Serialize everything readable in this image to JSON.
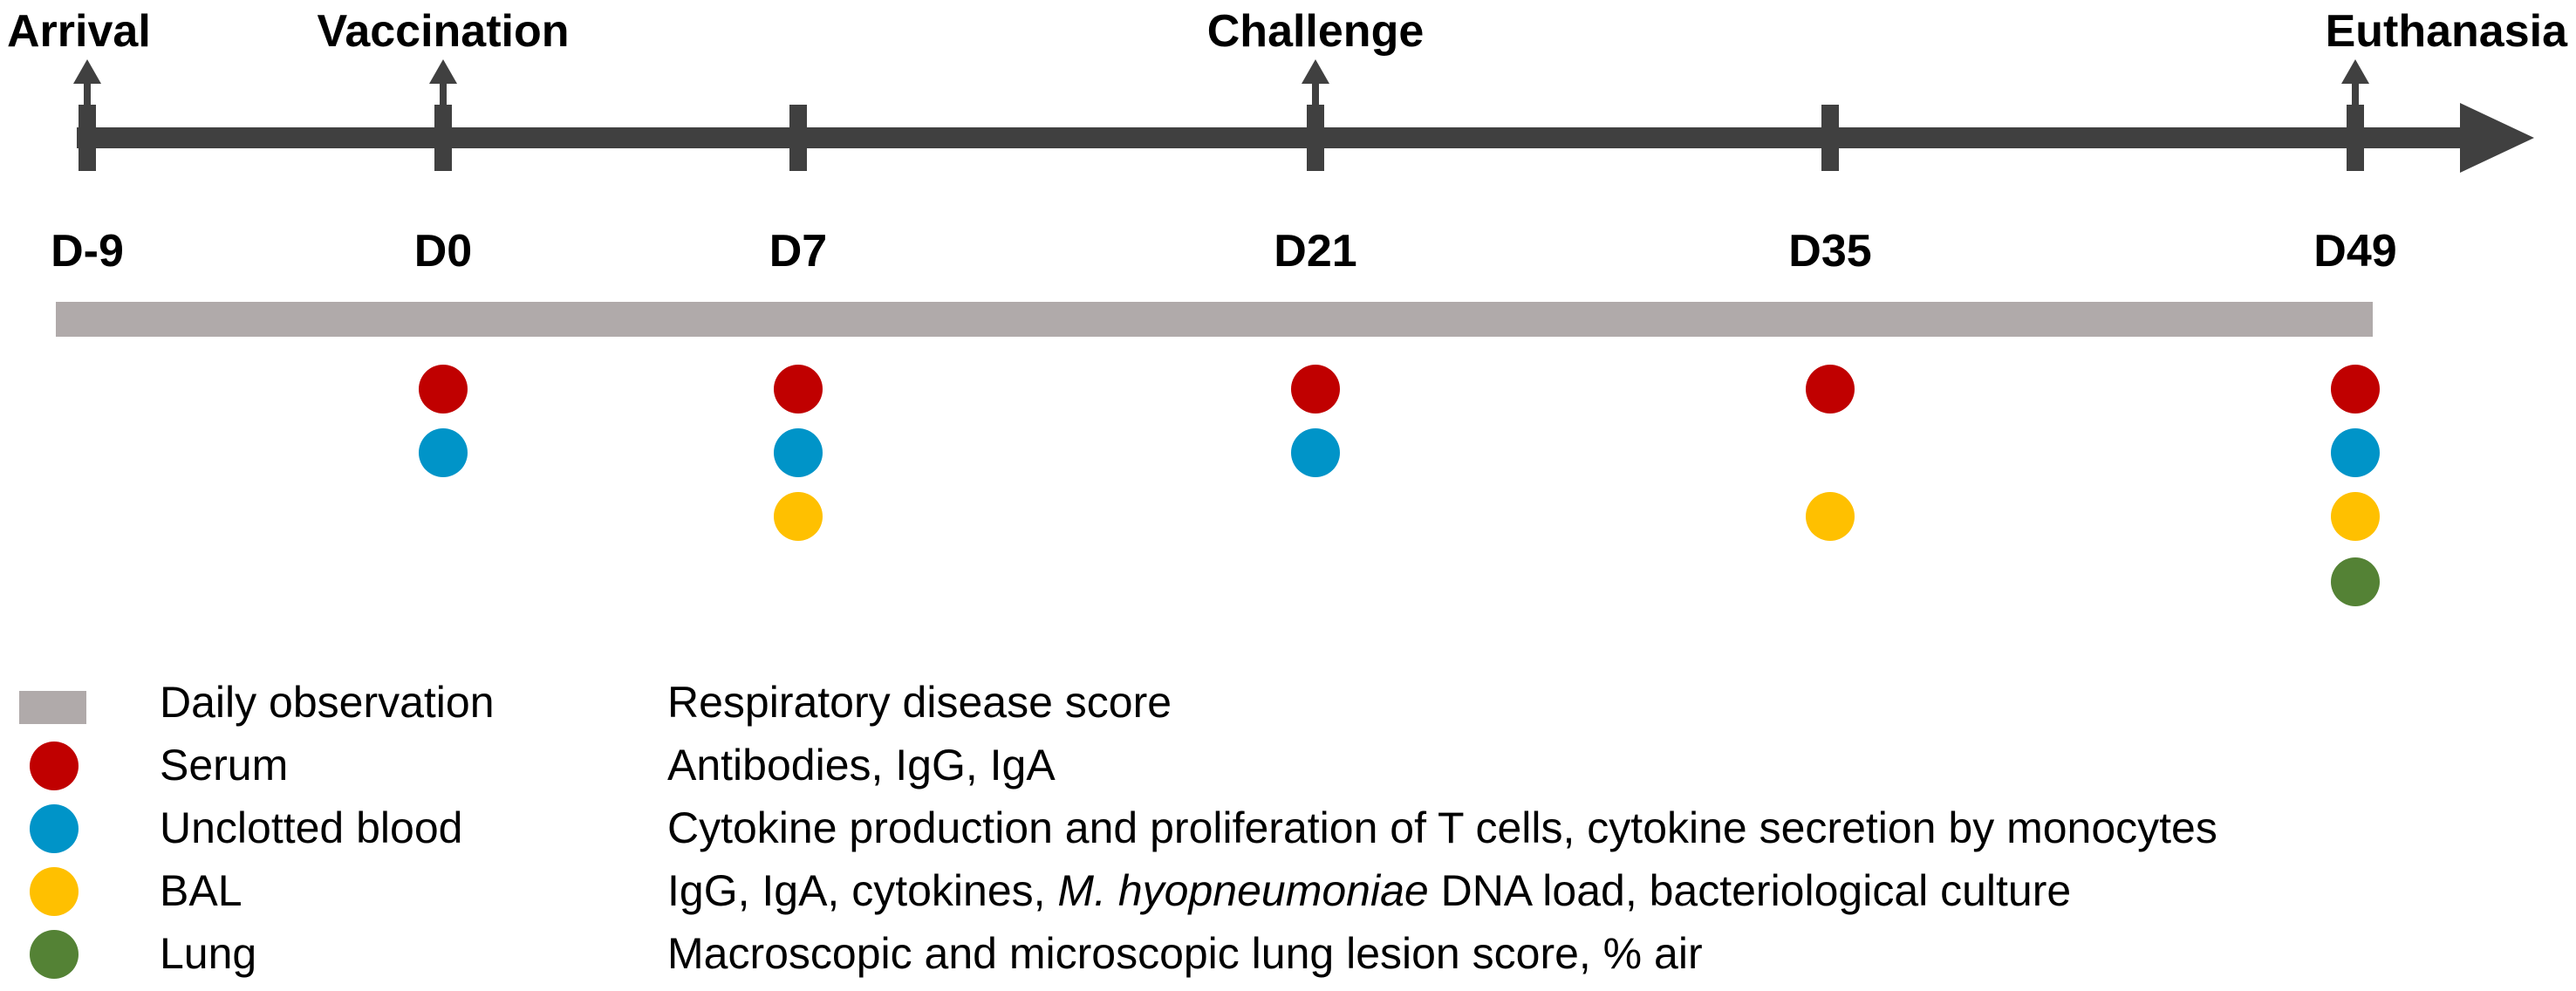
{
  "colors": {
    "axis": "#404040",
    "observation_bar": "#b0aaaa",
    "serum": "#c00000",
    "unclotted_blood": "#0094c8",
    "bal": "#ffc000",
    "lung": "#548235"
  },
  "days": [
    {
      "label": "D-9",
      "day": -9,
      "event": "Arrival",
      "samples": []
    },
    {
      "label": "D0",
      "day": 0,
      "event": "Vaccination",
      "samples": [
        "serum",
        "unclotted_blood"
      ]
    },
    {
      "label": "D7",
      "day": 7,
      "event": "",
      "samples": [
        "serum",
        "unclotted_blood",
        "bal"
      ]
    },
    {
      "label": "D21",
      "day": 21,
      "event": "Challenge",
      "samples": [
        "serum",
        "unclotted_blood"
      ]
    },
    {
      "label": "D35",
      "day": 35,
      "event": "",
      "samples": [
        "serum",
        "bal"
      ]
    },
    {
      "label": "D49",
      "day": 49,
      "event": "Euthanasia",
      "samples": [
        "serum",
        "unclotted_blood",
        "bal",
        "lung"
      ]
    }
  ],
  "legend": [
    {
      "key": "observation",
      "marker": "bar",
      "sample": "Daily observation",
      "measure": "Respiratory disease score"
    },
    {
      "key": "serum",
      "marker": "dot",
      "sample": "Serum",
      "measure": "Antibodies, IgG, IgA"
    },
    {
      "key": "unclotted_blood",
      "marker": "dot",
      "sample": "Unclotted blood",
      "measure": "Cytokine production and proliferation of T cells, cytokine secretion by monocytes"
    },
    {
      "key": "bal",
      "marker": "dot",
      "sample": "BAL",
      "measure_parts": [
        "IgG, IgA, cytokines, ",
        "M. hyopneumoniae",
        " DNA load, bacteriological culture"
      ]
    },
    {
      "key": "lung",
      "marker": "dot",
      "sample": "Lung",
      "measure": "Macroscopic and microscopic lung lesion score, % air"
    }
  ]
}
